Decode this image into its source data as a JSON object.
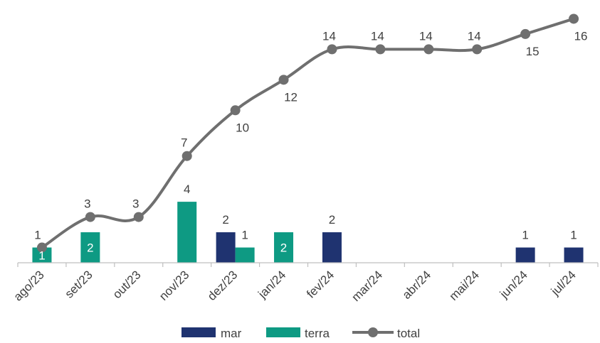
{
  "chart_data": {
    "type": "bar",
    "categories": [
      "ago/23",
      "set/23",
      "out/23",
      "nov/23",
      "dez/23",
      "jan/24",
      "fev/24",
      "mar/24",
      "abr/24",
      "mai/24",
      "jun/24",
      "jul/24"
    ],
    "series": [
      {
        "name": "mar",
        "kind": "bar",
        "color": "#1f3370",
        "values": [
          null,
          null,
          null,
          null,
          2,
          null,
          2,
          null,
          null,
          null,
          1,
          1
        ]
      },
      {
        "name": "terra",
        "kind": "bar",
        "color": "#0e9a83",
        "values": [
          1,
          2,
          null,
          4,
          1,
          2,
          null,
          null,
          null,
          null,
          null,
          null
        ]
      },
      {
        "name": "total",
        "kind": "line",
        "color": "#6f6f6f",
        "values": [
          1,
          3,
          3,
          7,
          10,
          12,
          14,
          14,
          14,
          14,
          15,
          16
        ]
      }
    ],
    "ylim": [
      0,
      16.3
    ],
    "grid": false,
    "legend": "bottom"
  }
}
